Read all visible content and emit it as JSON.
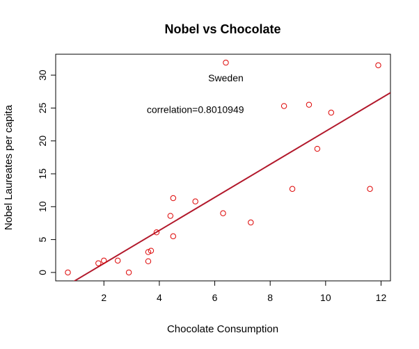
{
  "chart_data": {
    "type": "scatter",
    "title": "Nobel vs Chocolate",
    "xlabel": "Chocolate Consumption",
    "ylabel": "Nobel Laureates per capita",
    "xlim": [
      0.26,
      12.34
    ],
    "ylim": [
      -1.28,
      33.18
    ],
    "xticks": [
      2,
      4,
      6,
      8,
      10,
      12
    ],
    "yticks": [
      0,
      5,
      10,
      15,
      20,
      25,
      30
    ],
    "grid": false,
    "point_color": "#dd0000",
    "line_color": "#b2182b",
    "points": [
      {
        "x": 0.7,
        "y": 0.0
      },
      {
        "x": 1.8,
        "y": 1.4
      },
      {
        "x": 2.0,
        "y": 1.8
      },
      {
        "x": 2.5,
        "y": 1.8
      },
      {
        "x": 2.9,
        "y": 0.0
      },
      {
        "x": 3.6,
        "y": 1.7
      },
      {
        "x": 3.6,
        "y": 3.1
      },
      {
        "x": 3.7,
        "y": 3.3
      },
      {
        "x": 3.9,
        "y": 6.1
      },
      {
        "x": 4.4,
        "y": 8.6
      },
      {
        "x": 4.5,
        "y": 5.5
      },
      {
        "x": 4.5,
        "y": 11.3
      },
      {
        "x": 5.3,
        "y": 10.8
      },
      {
        "x": 6.3,
        "y": 9.0
      },
      {
        "x": 6.4,
        "y": 31.9
      },
      {
        "x": 7.3,
        "y": 7.6
      },
      {
        "x": 8.5,
        "y": 25.3
      },
      {
        "x": 8.8,
        "y": 12.7
      },
      {
        "x": 9.4,
        "y": 25.5
      },
      {
        "x": 9.7,
        "y": 18.8
      },
      {
        "x": 10.2,
        "y": 24.3
      },
      {
        "x": 11.6,
        "y": 12.7
      },
      {
        "x": 11.9,
        "y": 31.5
      }
    ],
    "regression_line": {
      "x1": 0.26,
      "y1": -3.0,
      "x2": 12.34,
      "y2": 27.33
    },
    "annotations": [
      {
        "text": "Sweden",
        "x": 6.4,
        "y": 29.6
      },
      {
        "text": "correlation=0.8010949",
        "x": 5.3,
        "y": 24.8
      }
    ]
  }
}
